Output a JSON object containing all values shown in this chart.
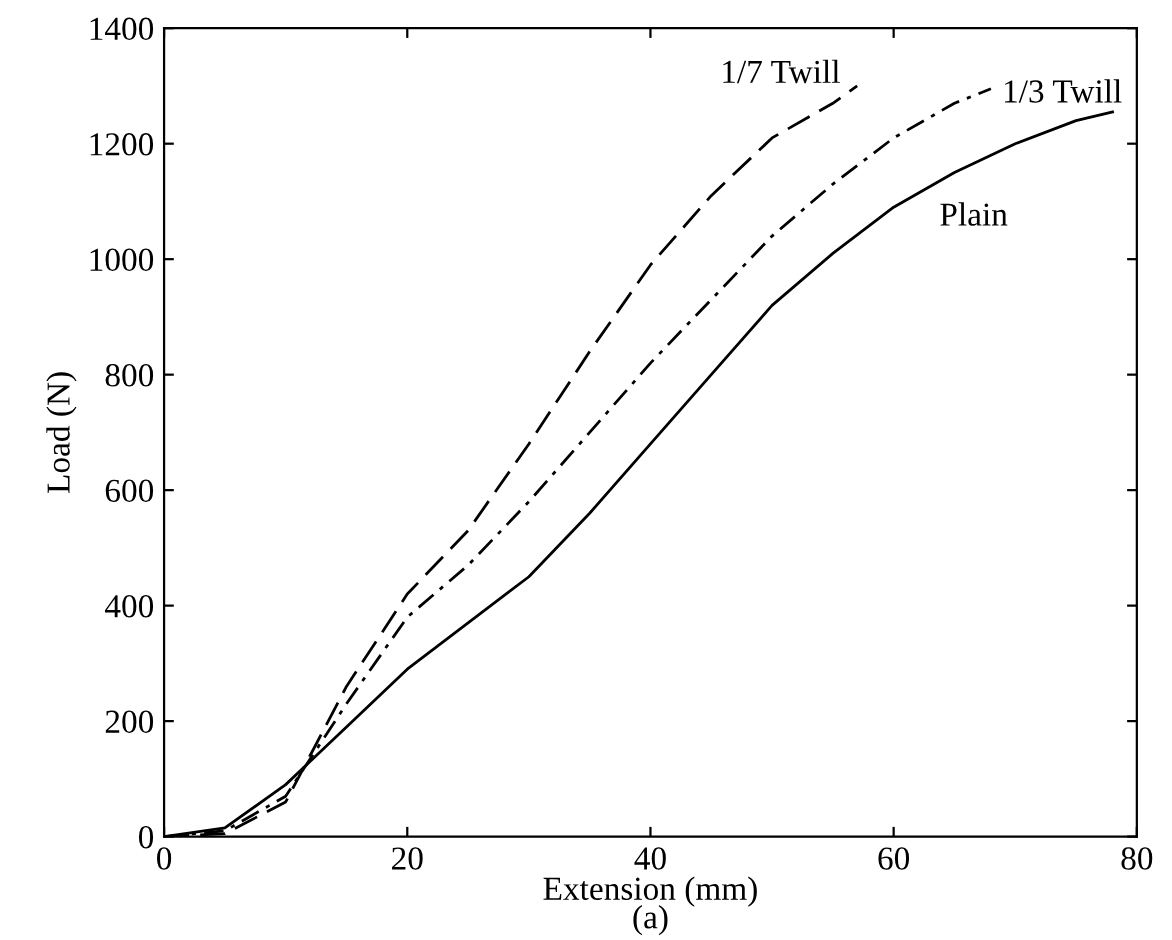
{
  "chart_data": {
    "type": "line",
    "xlabel": "Extension (mm)",
    "ylabel": "Load (N)",
    "xlim": [
      0,
      80
    ],
    "ylim": [
      0,
      1400
    ],
    "xticks": [
      0,
      20,
      40,
      60,
      80
    ],
    "yticks": [
      0,
      200,
      400,
      600,
      800,
      1000,
      1200,
      1400
    ],
    "grid": false,
    "legend": false,
    "marker": "none",
    "series": [
      {
        "name": "Plain",
        "color": "#000000",
        "line_style": "solid",
        "x": [
          0,
          5,
          10,
          15,
          20,
          25,
          30,
          35,
          40,
          45,
          50,
          55,
          60,
          65,
          70,
          75,
          78
        ],
        "values": [
          0,
          15,
          90,
          190,
          290,
          370,
          450,
          560,
          680,
          800,
          920,
          1010,
          1090,
          1150,
          1200,
          1240,
          1255
        ]
      },
      {
        "name": "1/3 Twill",
        "color": "#000000",
        "line_style": "dashdot",
        "x": [
          0,
          5,
          10,
          15,
          20,
          25,
          30,
          35,
          40,
          45,
          50,
          55,
          60,
          65,
          68
        ],
        "values": [
          0,
          10,
          70,
          230,
          380,
          470,
          580,
          700,
          820,
          930,
          1040,
          1130,
          1210,
          1270,
          1295
        ]
      },
      {
        "name": "1/7 Twill",
        "color": "#000000",
        "line_style": "dashed",
        "x": [
          0,
          5,
          10,
          15,
          20,
          25,
          30,
          35,
          40,
          45,
          50,
          55,
          57
        ],
        "values": [
          0,
          5,
          60,
          260,
          420,
          530,
          680,
          840,
          990,
          1110,
          1210,
          1270,
          1300
        ]
      }
    ],
    "annotations": [
      "(a)"
    ]
  }
}
